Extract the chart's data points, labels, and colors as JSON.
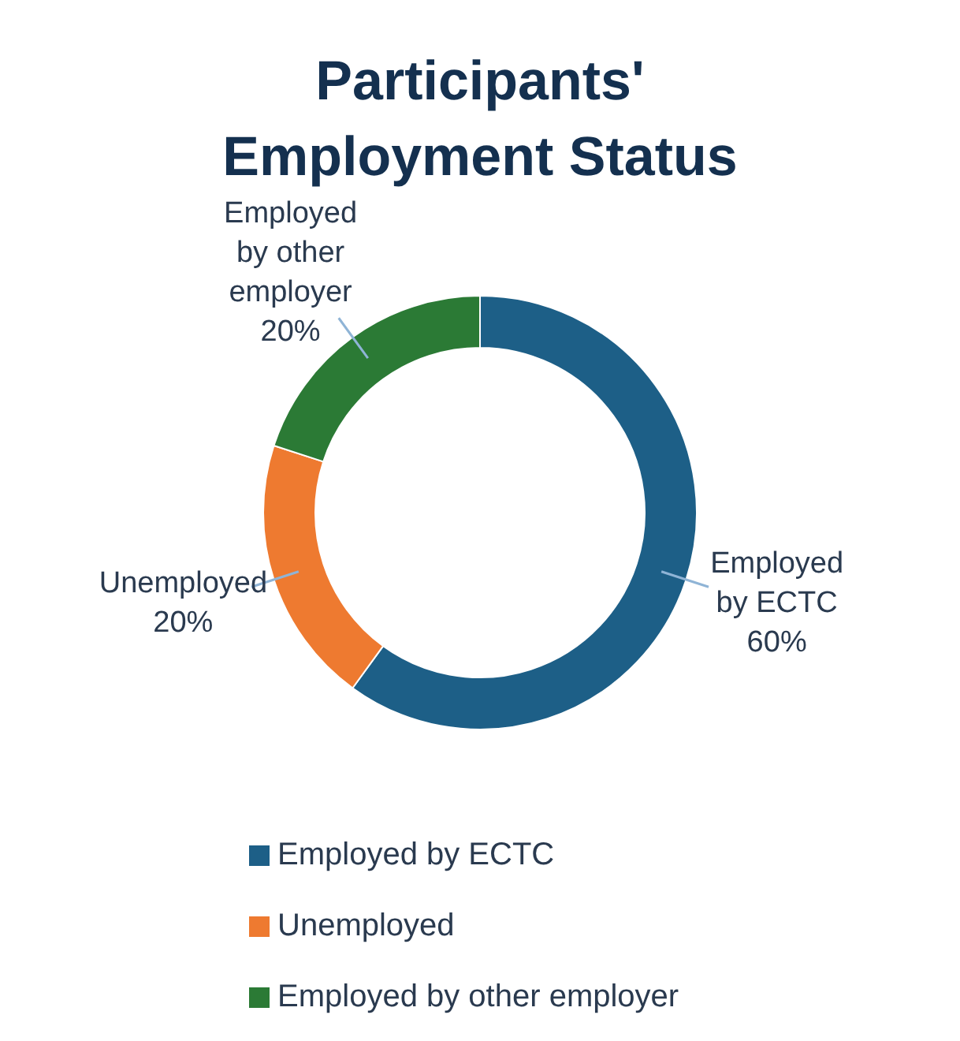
{
  "chart_data": {
    "type": "donut",
    "title": "Participants' Employment Status",
    "categories": [
      "Employed by ECTC",
      "Unemployed",
      "Employed by other employer"
    ],
    "values": [
      60,
      20,
      20
    ],
    "colors": [
      "#1d5f87",
      "#ee7a30",
      "#2b7a35"
    ],
    "value_labels": [
      "60%",
      "20%",
      "20%"
    ],
    "legend": "bottom"
  }
}
